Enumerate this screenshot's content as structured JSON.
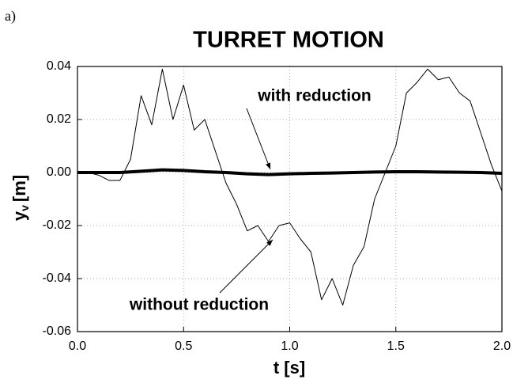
{
  "panel_label": "a)",
  "chart_data": {
    "type": "line",
    "title": "TURRET MOTION",
    "xlabel": "t [s]",
    "ylabel": "y",
    "ylabel_subscript": "v",
    "ylabel_unit": "[m]",
    "xlim": [
      0,
      2
    ],
    "ylim": [
      -0.06,
      0.04
    ],
    "xticks": [
      {
        "value": 0,
        "label": "0.0"
      },
      0.5,
      {
        "value": 1,
        "label": "1.0"
      },
      1.5,
      {
        "value": 2,
        "label": "2.0"
      }
    ],
    "yticks": [
      {
        "value": -0.06,
        "label": "-0.06"
      },
      {
        "value": -0.04,
        "label": "-0.04"
      },
      {
        "value": -0.02,
        "label": "-0.02"
      },
      {
        "value": 0,
        "label": "0.00"
      },
      {
        "value": 0.02,
        "label": "0.02"
      },
      {
        "value": 0.04,
        "label": "0.04"
      }
    ],
    "grid": true,
    "series": [
      {
        "name": "without reduction",
        "color": "#000000",
        "width": 1,
        "x": [
          0,
          0.05,
          0.1,
          0.15,
          0.2,
          0.25,
          0.3,
          0.35,
          0.4,
          0.45,
          0.5,
          0.55,
          0.6,
          0.65,
          0.7,
          0.75,
          0.8,
          0.85,
          0.9,
          0.95,
          1,
          1.05,
          1.1,
          1.15,
          1.2,
          1.25,
          1.3,
          1.35,
          1.4,
          1.45,
          1.5,
          1.55,
          1.6,
          1.65,
          1.7,
          1.75,
          1.8,
          1.85,
          1.9,
          1.95,
          2
        ],
        "values": [
          0,
          0,
          -0.001,
          -0.003,
          -0.003,
          0.005,
          0.029,
          0.018,
          0.039,
          0.02,
          0.033,
          0.016,
          0.02,
          0.008,
          -0.004,
          -0.012,
          -0.022,
          -0.02,
          -0.026,
          -0.02,
          -0.019,
          -0.025,
          -0.03,
          -0.048,
          -0.04,
          -0.05,
          -0.035,
          -0.028,
          -0.01,
          0,
          0.01,
          0.03,
          0.034,
          0.039,
          0.035,
          0.036,
          0.03,
          0.027,
          0.015,
          0.003,
          -0.007
        ]
      },
      {
        "name": "with reduction",
        "color": "#000000",
        "width": 4,
        "x": [
          0,
          0.1,
          0.2,
          0.3,
          0.4,
          0.5,
          0.6,
          0.7,
          0.8,
          0.9,
          1,
          1.1,
          1.2,
          1.3,
          1.4,
          1.5,
          1.6,
          1.7,
          1.8,
          1.9,
          2
        ],
        "values": [
          0,
          0,
          0,
          0.0005,
          0.001,
          0.0008,
          0.0003,
          0,
          -0.0005,
          -0.0008,
          -0.0005,
          -0.0003,
          -0.0002,
          0,
          0.0002,
          0.0003,
          0.0003,
          0.0002,
          0.0001,
          0,
          -0.0003
        ]
      }
    ]
  }
}
